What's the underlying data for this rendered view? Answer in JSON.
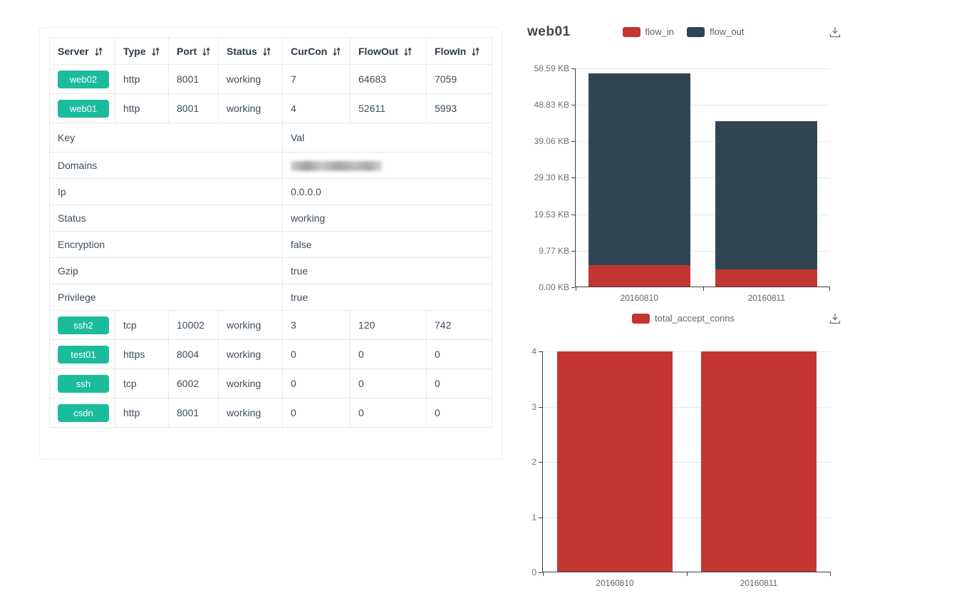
{
  "table": {
    "columns": [
      {
        "label": "Server"
      },
      {
        "label": "Type"
      },
      {
        "label": "Port"
      },
      {
        "label": "Status"
      },
      {
        "label": "CurCon"
      },
      {
        "label": "FlowOut"
      },
      {
        "label": "FlowIn"
      }
    ],
    "server_rows_top": [
      {
        "server": "web02",
        "type": "http",
        "port": "8001",
        "status": "working",
        "curcon": "7",
        "flowout": "64683",
        "flowin": "7059"
      },
      {
        "server": "web01",
        "type": "http",
        "port": "8001",
        "status": "working",
        "curcon": "4",
        "flowout": "52611",
        "flowin": "5993"
      }
    ],
    "kv_section": {
      "key_header": "Key",
      "val_header": "Val",
      "rows": [
        {
          "key": "Domains",
          "val": "",
          "val_blurred": true
        },
        {
          "key": "Ip",
          "val": "0.0.0.0"
        },
        {
          "key": "Status",
          "val": "working"
        },
        {
          "key": "Encryption",
          "val": "false"
        },
        {
          "key": "Gzip",
          "val": "true"
        },
        {
          "key": "Privilege",
          "val": "true"
        }
      ]
    },
    "server_rows_bottom": [
      {
        "server": "ssh2",
        "type": "tcp",
        "port": "10002",
        "status": "working",
        "curcon": "3",
        "flowout": "120",
        "flowin": "742"
      },
      {
        "server": "test01",
        "type": "https",
        "port": "8004",
        "status": "working",
        "curcon": "0",
        "flowout": "0",
        "flowin": "0"
      },
      {
        "server": "ssh",
        "type": "tcp",
        "port": "6002",
        "status": "working",
        "curcon": "0",
        "flowout": "0",
        "flowin": "0"
      },
      {
        "server": "csdn",
        "type": "http",
        "port": "8001",
        "status": "working",
        "curcon": "0",
        "flowout": "0",
        "flowin": "0"
      }
    ],
    "badge_color": "#1abc9c",
    "icons": {
      "sort": "sort-asc-desc-icon"
    }
  },
  "chart_data": [
    {
      "type": "bar",
      "stacked": true,
      "title": "web01",
      "categories": [
        "20160810",
        "20160811"
      ],
      "series": [
        {
          "name": "flow_in",
          "color": "#c23531",
          "values": [
            5.85,
            4.7
          ]
        },
        {
          "name": "flow_out",
          "color": "#2f4554",
          "values": [
            51.38,
            39.7
          ]
        }
      ],
      "unit": "KB",
      "ylim": [
        0,
        58.59
      ],
      "yticks": [
        {
          "value": 0,
          "label": "0.00 KB"
        },
        {
          "value": 9.77,
          "label": "9.77 KB"
        },
        {
          "value": 19.53,
          "label": "19.53 KB"
        },
        {
          "value": 29.3,
          "label": "29.30 KB"
        },
        {
          "value": 39.06,
          "label": "39.06 KB"
        },
        {
          "value": 48.83,
          "label": "48.83 KB"
        },
        {
          "value": 58.59,
          "label": "58.59 KB"
        }
      ],
      "legend_position": "top-center",
      "grid": true,
      "icons": {
        "toolbox": "download-icon"
      }
    },
    {
      "type": "bar",
      "stacked": false,
      "title": "",
      "categories": [
        "20160810",
        "20160811"
      ],
      "series": [
        {
          "name": "total_accept_conns",
          "color": "#c23531",
          "values": [
            4,
            4
          ]
        }
      ],
      "ylim": [
        0,
        4
      ],
      "yticks": [
        {
          "value": 0,
          "label": "0"
        },
        {
          "value": 1,
          "label": "1"
        },
        {
          "value": 2,
          "label": "2"
        },
        {
          "value": 3,
          "label": "3"
        },
        {
          "value": 4,
          "label": "4"
        }
      ],
      "legend_position": "top-center",
      "grid": true,
      "icons": {
        "toolbox": "download-icon"
      }
    }
  ]
}
